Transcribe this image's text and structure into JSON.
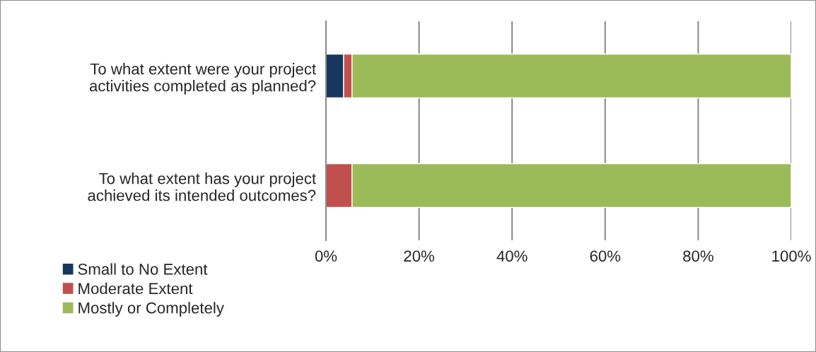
{
  "chart_data": {
    "type": "bar",
    "orientation": "horizontal",
    "stacked": true,
    "categories": [
      "To what extent were your project\nactivities completed as planned?",
      "To what extent has your project\nachieved its intended outcomes?"
    ],
    "series": [
      {
        "name": "Small to No Extent",
        "color": "#17375e",
        "values": [
          3.8,
          0
        ]
      },
      {
        "name": "Moderate Extent",
        "color": "#c0504d",
        "values": [
          1.8,
          5.6
        ]
      },
      {
        "name": "Mostly or Completely",
        "color": "#9bbb59",
        "values": [
          94.4,
          94.4
        ]
      }
    ],
    "xlim": [
      0,
      100
    ],
    "xticks": [
      {
        "value": 0,
        "label": "0%"
      },
      {
        "value": 20,
        "label": "20%"
      },
      {
        "value": 40,
        "label": "40%"
      },
      {
        "value": 60,
        "label": "60%"
      },
      {
        "value": 80,
        "label": "80%"
      },
      {
        "value": 100,
        "label": "100%"
      }
    ],
    "grid": "x",
    "legend": "bottom left"
  }
}
